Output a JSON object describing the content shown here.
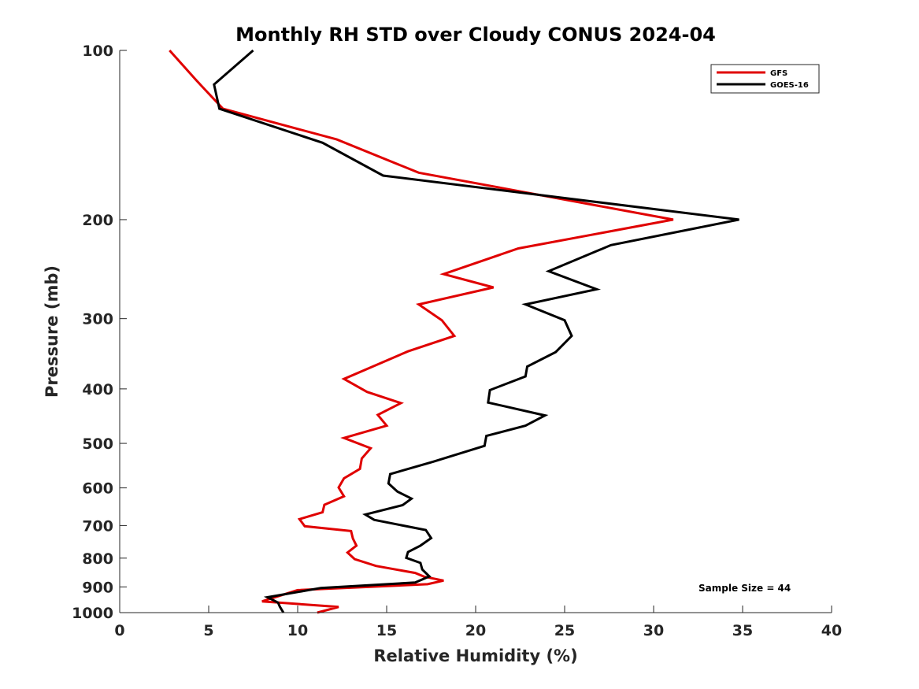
{
  "chart_data": {
    "type": "line",
    "title": "Monthly RH STD over Cloudy CONUS  2024-04",
    "xlabel": "Relative Humidity (%)",
    "ylabel": "Pressure (mb)",
    "xlim": [
      0,
      40
    ],
    "ylim": [
      100,
      1000
    ],
    "y_scale": "log",
    "y_reversed": true,
    "x_ticks": [
      0,
      5,
      10,
      15,
      20,
      25,
      30,
      35,
      40
    ],
    "y_ticks": [
      100,
      200,
      300,
      400,
      500,
      600,
      700,
      800,
      900,
      1000
    ],
    "grid": false,
    "legend_position": "top-right",
    "annotation": "Sample Size = 44",
    "series": [
      {
        "name": "GFS",
        "color": "#e00000",
        "points": [
          [
            2.8,
            100
          ],
          [
            4.3,
            113
          ],
          [
            5.8,
            127
          ],
          [
            12.2,
            144
          ],
          [
            16.8,
            165
          ],
          [
            31.1,
            200
          ],
          [
            22.4,
            225
          ],
          [
            18.2,
            250
          ],
          [
            21.0,
            264
          ],
          [
            16.8,
            283
          ],
          [
            18.1,
            302
          ],
          [
            18.8,
            322
          ],
          [
            16.2,
            343
          ],
          [
            12.6,
            384
          ],
          [
            13.9,
            405
          ],
          [
            15.8,
            424
          ],
          [
            14.5,
            445
          ],
          [
            15.0,
            465
          ],
          [
            12.6,
            489
          ],
          [
            14.1,
            510
          ],
          [
            13.6,
            532
          ],
          [
            13.5,
            555
          ],
          [
            12.6,
            577
          ],
          [
            12.3,
            599
          ],
          [
            12.6,
            621
          ],
          [
            11.5,
            643
          ],
          [
            11.4,
            663
          ],
          [
            10.1,
            682
          ],
          [
            10.4,
            702
          ],
          [
            13.0,
            716
          ],
          [
            13.1,
            738
          ],
          [
            13.3,
            760
          ],
          [
            12.8,
            782
          ],
          [
            13.2,
            803
          ],
          [
            14.4,
            826
          ],
          [
            16.6,
            850
          ],
          [
            17.1,
            863
          ],
          [
            18.2,
            877
          ],
          [
            17.3,
            890
          ],
          [
            10.0,
            912
          ],
          [
            8.0,
            955
          ],
          [
            12.3,
            977
          ],
          [
            11.1,
            1000
          ]
        ]
      },
      {
        "name": "GOES-16",
        "color": "#000000",
        "points": [
          [
            7.5,
            100
          ],
          [
            5.3,
            115
          ],
          [
            5.6,
            127
          ],
          [
            11.4,
            146
          ],
          [
            14.8,
            167
          ],
          [
            34.8,
            200
          ],
          [
            27.6,
            222
          ],
          [
            24.1,
            247
          ],
          [
            26.8,
            266
          ],
          [
            22.8,
            283
          ],
          [
            25.0,
            302
          ],
          [
            25.4,
            322
          ],
          [
            24.5,
            344
          ],
          [
            22.9,
            365
          ],
          [
            22.8,
            380
          ],
          [
            20.8,
            402
          ],
          [
            20.7,
            423
          ],
          [
            23.9,
            446
          ],
          [
            22.8,
            465
          ],
          [
            20.6,
            485
          ],
          [
            20.5,
            505
          ],
          [
            17.6,
            539
          ],
          [
            15.2,
            567
          ],
          [
            15.1,
            589
          ],
          [
            15.6,
            609
          ],
          [
            16.4,
            627
          ],
          [
            15.9,
            644
          ],
          [
            13.8,
            669
          ],
          [
            14.3,
            684
          ],
          [
            17.2,
            713
          ],
          [
            17.5,
            737
          ],
          [
            16.9,
            760
          ],
          [
            16.2,
            780
          ],
          [
            16.1,
            799
          ],
          [
            16.9,
            816
          ],
          [
            17.0,
            838
          ],
          [
            17.4,
            862
          ],
          [
            16.6,
            884
          ],
          [
            11.3,
            904
          ],
          [
            8.3,
            939
          ],
          [
            8.9,
            960
          ],
          [
            9.0,
            976
          ],
          [
            9.2,
            1000
          ]
        ]
      }
    ]
  }
}
